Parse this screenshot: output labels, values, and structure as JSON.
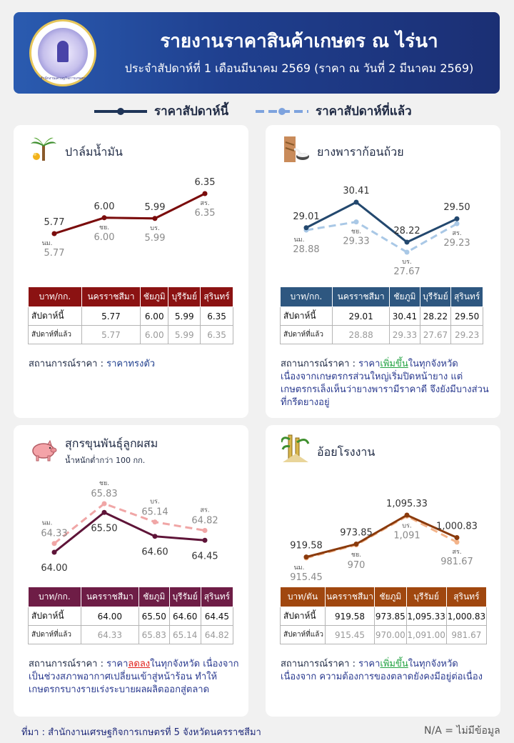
{
  "header": {
    "title": "รายงานราคาสินค้าเกษตร ณ ไร่นา",
    "subtitle": "ประจำสัปดาห์ที่ 1 เดือนมีนาคม 2569 (ราคา ณ วันที่ 2 มีนาคม 2569)",
    "logo_text": "สำนักงานเศรษฐกิจการเกษตร"
  },
  "legend": {
    "current": "ราคาสัปดาห์นี้",
    "previous": "ราคาสัปดาห์ที่แล้ว"
  },
  "provinces": [
    "นม.",
    "ชย.",
    "บร.",
    "สร."
  ],
  "table_labels": {
    "current": "สัปดาห์นี้",
    "previous": "สัปดาห์ที่แล้ว",
    "provinces": [
      "นครราชสีมา",
      "ชัยภูมิ",
      "บุรีรัมย์",
      "สุรินทร์"
    ]
  },
  "status_label": "สถานการณ์ราคา :",
  "chart_data": [
    {
      "type": "line",
      "title": "ปาล์มน้ำมัน",
      "unit": "บาท/กก.",
      "categories": [
        "นครราชสีมา",
        "ชัยภูมิ",
        "บุรีรัมย์",
        "สุรินทร์"
      ],
      "series": [
        {
          "name": "ราคาสัปดาห์นี้",
          "values": [
            5.77,
            6.0,
            5.99,
            6.35
          ],
          "labels": [
            "5.77",
            "6.00",
            "5.99",
            "6.35"
          ]
        },
        {
          "name": "ราคาสัปดาห์ที่แล้ว",
          "values": [
            5.77,
            6.0,
            5.99,
            6.35
          ],
          "labels": [
            "5.77",
            "6.00",
            "5.99",
            "6.35"
          ]
        }
      ],
      "colors": {
        "current": "#7a0c0c",
        "previous": "#cf8b8b",
        "header": "#8b1212"
      },
      "status": {
        "lead": "",
        "result": "ราคาทรงตัว",
        "tail": "",
        "desc": ""
      }
    },
    {
      "type": "line",
      "title": "ยางพาราก้อนถ้วย",
      "unit": "บาท/กก.",
      "categories": [
        "นครราชสีมา",
        "ชัยภูมิ",
        "บุรีรัมย์",
        "สุรินทร์"
      ],
      "series": [
        {
          "name": "ราคาสัปดาห์นี้",
          "values": [
            29.01,
            30.41,
            28.22,
            29.5
          ],
          "labels": [
            "29.01",
            "30.41",
            "28.22",
            "29.50"
          ]
        },
        {
          "name": "ราคาสัปดาห์ที่แล้ว",
          "values": [
            28.88,
            29.33,
            27.67,
            29.23
          ],
          "labels": [
            "28.88",
            "29.33",
            "27.67",
            "29.23"
          ]
        }
      ],
      "colors": {
        "current": "#23486e",
        "previous": "#a9c8e6",
        "header": "#2e5780"
      },
      "status": {
        "lead": "ราคา",
        "result": "เพิ่มขึ้น",
        "tail": "ในทุกจังหวัด",
        "desc": "เนื่องจากเกษตรกรส่วนใหญ่เริ่มปิดหน้ายาง แต่เกษตรกรเล็งเห็นว่ายางพารามีราคาดี จึงยังมีบางส่วนที่กรีดยางอยู่"
      }
    },
    {
      "type": "line",
      "title": "สุกรขุนพันธุ์ลูกผสม",
      "subtitle": "น้ำหนักต่ำกว่า 100 กก.",
      "unit": "บาท/กก.",
      "categories": [
        "นครราชสีมา",
        "ชัยภูมิ",
        "บุรีรัมย์",
        "สุรินทร์"
      ],
      "series": [
        {
          "name": "ราคาสัปดาห์นี้",
          "values": [
            64.0,
            65.5,
            64.6,
            64.45
          ],
          "labels": [
            "64.00",
            "65.50",
            "64.60",
            "64.45"
          ]
        },
        {
          "name": "ราคาสัปดาห์ที่แล้ว",
          "values": [
            64.33,
            65.83,
            65.14,
            64.82
          ],
          "labels": [
            "64.33",
            "65.83",
            "65.14",
            "64.82"
          ]
        }
      ],
      "colors": {
        "current": "#5e1438",
        "previous": "#f0a6a6",
        "header": "#6e1d46"
      },
      "status": {
        "lead": "ราคา",
        "result": "ลดลง",
        "tail": "ในทุกจังหวัด",
        "desc": "เนื่องจากเป็นช่วงสภาพอากาศเปลี่ยนเข้าสู่หน้าร้อน ทำให้เกษตรกรบางรายเร่งระบายผลผลิตออกสู่ตลาด"
      }
    },
    {
      "type": "line",
      "title": "อ้อยโรงงาน",
      "unit": "บาท/ตัน",
      "categories": [
        "นครราชสีมา",
        "ชัยภูมิ",
        "บุรีรัมย์",
        "สุรินทร์"
      ],
      "series": [
        {
          "name": "ราคาสัปดาห์นี้",
          "values": [
            919.58,
            973.85,
            1095.33,
            1000.83
          ],
          "labels": [
            "919.58",
            "973.85",
            "1,095.33",
            "1,000.83"
          ]
        },
        {
          "name": "ราคาสัปดาห์ที่แล้ว",
          "values": [
            915.45,
            970.0,
            1091.0,
            981.67
          ],
          "labels": [
            "915.45",
            "970.00",
            "1,091.00",
            "981.67"
          ],
          "point_labels": [
            "915.45",
            "970",
            "1,091",
            "981.67"
          ]
        }
      ],
      "colors": {
        "current": "#8a3a0c",
        "previous": "#f3b48a",
        "header": "#a0470f"
      },
      "status": {
        "lead": "ราคา",
        "result": "เพิ่มขึ้น",
        "tail": "ในทุกจังหวัด เนื่องจาก",
        "desc": "ความต้องการของตลาดยังคงมีอยู่ต่อเนื่อง"
      }
    }
  ],
  "footer": {
    "source": "ที่มา : สำนักงานเศรษฐกิจการเกษตรที่ 5 จังหวัดนครราชสีมา",
    "na_note": "N/A = ไม่มีข้อมูล"
  }
}
